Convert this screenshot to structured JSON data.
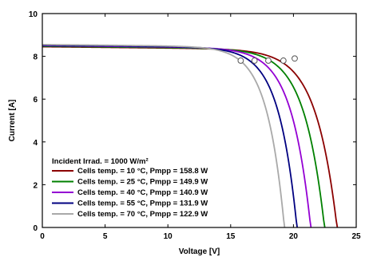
{
  "chart_data": {
    "type": "line",
    "xlabel": "Voltage [V]",
    "ylabel": "Current [A]",
    "xlim": [
      0,
      25
    ],
    "ylim": [
      0,
      10
    ],
    "xticks": [
      "0",
      "5",
      "10",
      "15",
      "20",
      "25"
    ],
    "yticks": [
      "0",
      "2",
      "4",
      "6",
      "8",
      "10"
    ],
    "grid": false,
    "legend_title": "Incident Irrad. = 1000 W/m²",
    "legend_position": "bottom-left",
    "series": [
      {
        "name": "Cells temp. = 10 °C,  Pmpp = 158.8 W",
        "color": "#8b0000",
        "isc": 8.45,
        "voc": 23.5,
        "mpp": [
          20.1,
          7.9
        ]
      },
      {
        "name": "Cells temp. = 25 °C,  Pmpp = 149.9 W",
        "color": "#008000",
        "isc": 8.47,
        "voc": 22.5,
        "mpp": [
          19.2,
          7.8
        ]
      },
      {
        "name": "Cells temp. = 40 °C,  Pmpp = 140.9 W",
        "color": "#9400d3",
        "isc": 8.5,
        "voc": 21.4,
        "mpp": [
          18.0,
          7.8
        ]
      },
      {
        "name": "Cells temp. = 55 °C,  Pmpp = 131.9 W",
        "color": "#000080",
        "isc": 8.52,
        "voc": 20.3,
        "mpp": [
          16.9,
          7.8
        ]
      },
      {
        "name": "Cells temp. = 70 °C,  Pmpp = 122.9 W",
        "color": "#a9a9a9",
        "isc": 8.55,
        "voc": 19.3,
        "mpp": [
          15.8,
          7.8
        ]
      }
    ]
  }
}
